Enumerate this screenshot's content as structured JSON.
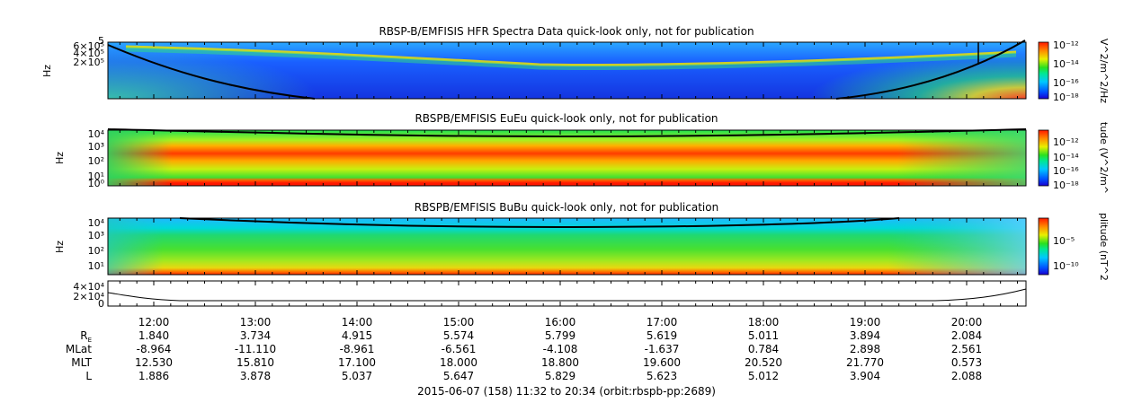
{
  "chart_data": [
    {
      "type": "heatmap",
      "title": "RBSP-B/EMFISIS  HFR Spectra Data quick-look only, not for publication",
      "ylabel": "Hz",
      "yticks": [
        "5",
        "6×10⁵",
        "4×10⁵",
        "2×10⁵"
      ],
      "colorbar": {
        "label": "V^2/m^2/Hz",
        "ticks": [
          "10⁻¹²",
          "10⁻¹⁴",
          "10⁻¹⁶",
          "10⁻¹⁸"
        ],
        "range": [
          -18,
          -12
        ]
      }
    },
    {
      "type": "heatmap",
      "title": "RBSPB/EMFISIS  EuEu quick-look only, not for publication",
      "ylabel": "Hz",
      "yticks": [
        "10⁴",
        "10³",
        "10²",
        "10¹",
        "10⁰"
      ],
      "colorbar": {
        "label": "tude (V^2/m^",
        "ticks": [
          "10⁻¹²",
          "10⁻¹⁴",
          "10⁻¹⁶",
          "10⁻¹⁸"
        ],
        "range": [
          -18,
          -12
        ]
      }
    },
    {
      "type": "heatmap",
      "title": "RBSPB/EMFISIS  BuBu quick-look only, not for publication",
      "ylabel": "Hz",
      "yticks": [
        "10⁴",
        "10³",
        "10²",
        "10¹"
      ],
      "colorbar": {
        "label": "plitude (nT^2",
        "ticks": [
          "10⁻⁵",
          "10⁻¹⁰"
        ],
        "range": [
          -12,
          -3
        ]
      }
    },
    {
      "type": "line",
      "yticks": [
        "4×10⁴",
        "2×10⁴",
        "0"
      ],
      "x": [
        "11:32",
        "12:00",
        "13:00",
        "14:00",
        "15:00",
        "16:00",
        "17:00",
        "18:00",
        "19:00",
        "20:00",
        "20:34"
      ]
    }
  ],
  "time_axis": {
    "ticks": [
      "12:00",
      "13:00",
      "14:00",
      "15:00",
      "16:00",
      "17:00",
      "18:00",
      "19:00",
      "20:00"
    ],
    "rows": [
      {
        "label": "R",
        "sub": "E",
        "values": [
          "1.840",
          "3.734",
          "4.915",
          "5.574",
          "5.799",
          "5.619",
          "5.011",
          "3.894",
          "2.084"
        ]
      },
      {
        "label": "MLat",
        "values": [
          "-8.964",
          "-11.110",
          "-8.961",
          "-6.561",
          "-4.108",
          "-1.637",
          "0.784",
          "2.898",
          "2.561"
        ]
      },
      {
        "label": "MLT",
        "values": [
          "12.530",
          "15.810",
          "17.100",
          "18.000",
          "18.800",
          "19.600",
          "20.520",
          "21.770",
          "0.573"
        ]
      },
      {
        "label": "L",
        "values": [
          "1.886",
          "3.878",
          "5.037",
          "5.647",
          "5.829",
          "5.623",
          "5.012",
          "3.904",
          "2.088"
        ]
      }
    ],
    "footer": "2015-06-07 (158) 11:32 to 20:34 (orbit:rbspb-pp:2689)"
  }
}
